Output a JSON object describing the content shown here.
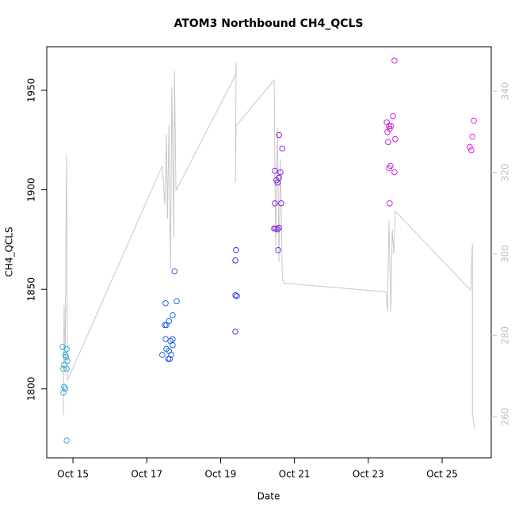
{
  "chart_data": {
    "type": "scatter",
    "title": "ATOM3 Northbound CH4_QCLS",
    "x_label": "Date",
    "y_label": "CH4_QCLS",
    "xlim": [
      14.29,
      26.33
    ],
    "xticks": [
      {
        "value": 15,
        "label": "Oct 15"
      },
      {
        "value": 17,
        "label": "Oct 17"
      },
      {
        "value": 19,
        "label": "Oct 19"
      },
      {
        "value": 21,
        "label": "Oct 21"
      },
      {
        "value": 23,
        "label": "Oct 23"
      },
      {
        "value": 25,
        "label": "Oct 25"
      }
    ],
    "ylim": [
      1765.3,
      1971.9
    ],
    "yticks": [
      1800,
      1850,
      1900,
      1950
    ],
    "y2lim": [
      249.9,
      350.9
    ],
    "y2ticks": [
      260,
      280,
      300,
      320,
      340
    ],
    "y2_tick_color": "#c0c0c0",
    "series": [
      {
        "type": "line",
        "axis": "y2",
        "color": "#c8c8c8",
        "x": [
          14.74,
          14.76,
          14.79,
          14.81,
          14.83,
          14.85,
          17.42,
          17.49,
          17.53,
          17.56,
          17.6,
          17.64,
          17.68,
          17.73,
          17.75,
          17.79,
          17.81,
          19.4,
          19.42,
          19.4,
          19.42,
          20.45,
          20.49,
          20.54,
          20.58,
          20.62,
          20.67,
          20.71,
          23.48,
          23.52,
          23.56,
          23.61,
          23.65,
          23.69,
          23.73,
          25.77,
          25.82,
          25.82,
          25.88
        ],
        "values": [
          260.4,
          287.4,
          272.8,
          306.4,
          324.7,
          268.9,
          321.6,
          312,
          329.5,
          308.7,
          331.7,
          296.1,
          341.2,
          303.9,
          345.0,
          315.5,
          315.9,
          343.9,
          347,
          317.5,
          331.5,
          342.7,
          302,
          331,
          298,
          323.3,
          294.2,
          292.8,
          290.7,
          285.8,
          308.2,
          285.8,
          306,
          300,
          310.5,
          291.1,
          302.5,
          260.8,
          256.9
        ]
      },
      {
        "type": "scatter",
        "color": "#33aadd",
        "x": [
          14.72,
          14.74,
          14.76,
          14.79,
          14.81,
          14.83,
          14.85,
          14.83,
          14.76,
          14.79,
          14.74,
          14.83
        ],
        "values": [
          1821,
          1810,
          1812,
          1817,
          1816,
          1820,
          1814,
          1810,
          1801,
          1800,
          1798,
          1774
        ]
      },
      {
        "type": "scatter",
        "color": "#2266dd",
        "x": [
          17.51,
          17.49,
          17.53,
          17.6,
          17.7,
          17.75,
          17.81,
          17.51,
          17.64,
          17.7,
          17.53,
          17.6,
          17.7,
          17.42,
          17.66,
          17.58,
          17.62
        ],
        "values": [
          1843,
          1832,
          1832,
          1834,
          1837,
          1859,
          1844,
          1825,
          1824,
          1825,
          1820,
          1819,
          1822,
          1817,
          1817,
          1815,
          1815
        ]
      },
      {
        "type": "scatter",
        "color": "#3333ee",
        "x": [
          19.4,
          19.42,
          19.4,
          19.44,
          19.4
        ],
        "values": [
          1864.5,
          1869.7,
          1847,
          1846.6,
          1828.7
        ]
      },
      {
        "type": "scatter",
        "color": "#8822dd",
        "x": [
          20.47,
          20.58,
          20.67,
          20.62,
          20.47,
          20.64,
          20.51,
          20.54,
          20.58,
          20.49,
          20.54,
          20.58,
          20.45,
          20.56
        ],
        "values": [
          1909.6,
          1927.5,
          1920.7,
          1908.8,
          1893.2,
          1893.2,
          1904.8,
          1903.6,
          1906,
          1880.5,
          1880.1,
          1880.9,
          1880.5,
          1869.7
        ]
      },
      {
        "type": "scatter",
        "color": "#cc22dd",
        "x": [
          23.71,
          23.67,
          23.73,
          23.5,
          23.56,
          23.58,
          23.52,
          23.61,
          23.54,
          23.6,
          23.56,
          23.71,
          23.58
        ],
        "values": [
          1965,
          1937,
          1925.5,
          1933.9,
          1932,
          1930.7,
          1929,
          1932,
          1924,
          1912,
          1910.8,
          1908.8,
          1893.2
        ]
      },
      {
        "type": "scatter",
        "color": "#ee22ee",
        "x": [
          25.86,
          25.82,
          25.75,
          25.79
        ],
        "values": [
          1934.7,
          1926.7,
          1921.5,
          1919.9
        ]
      }
    ]
  }
}
